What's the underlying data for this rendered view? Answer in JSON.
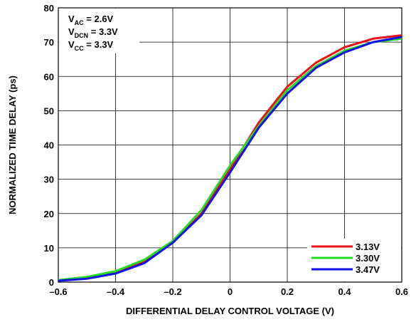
{
  "chart_data": {
    "type": "line",
    "xlabel": "DIFFERENTIAL DELAY CONTROL VOLTAGE (V)",
    "ylabel": "NORMALIZED TIME DELAY (ps)",
    "xlim": [
      -0.6,
      0.6
    ],
    "ylim": [
      0,
      80
    ],
    "x_ticks": [
      "–0.6",
      "–0.4",
      "–0.2",
      "0",
      "0.2",
      "0.4",
      "0.6"
    ],
    "y_ticks": [
      "0",
      "10",
      "20",
      "30",
      "40",
      "50",
      "60",
      "70",
      "80"
    ],
    "grid": true,
    "legend_position": "bottom-right",
    "annotations": [
      {
        "main": "V",
        "sub": "AC",
        "rest": " = 2.6V"
      },
      {
        "main": "V",
        "sub": "DCN",
        "rest": " = 3.3V"
      },
      {
        "main": "V",
        "sub": "CC",
        "rest": " = 3.3V"
      }
    ],
    "x": [
      -0.6,
      -0.5,
      -0.4,
      -0.3,
      -0.2,
      -0.1,
      0.0,
      0.1,
      0.2,
      0.3,
      0.4,
      0.5,
      0.6
    ],
    "series": [
      {
        "name": "3.13V",
        "color": "#ee1111",
        "values": [
          0.5,
          1.3,
          3.0,
          6.0,
          11.5,
          20.0,
          33.0,
          46.5,
          57.0,
          64.0,
          68.5,
          71.0,
          72.0
        ]
      },
      {
        "name": "3.30V",
        "color": "#22dd22",
        "values": [
          0.6,
          1.5,
          3.2,
          6.5,
          12.0,
          21.0,
          34.0,
          45.5,
          56.0,
          63.0,
          67.5,
          70.0,
          71.0
        ]
      },
      {
        "name": "3.47V",
        "color": "#1111ee",
        "values": [
          0.4,
          1.0,
          2.5,
          5.5,
          11.5,
          19.5,
          32.0,
          45.0,
          55.0,
          62.5,
          67.0,
          70.0,
          71.5
        ]
      }
    ]
  }
}
